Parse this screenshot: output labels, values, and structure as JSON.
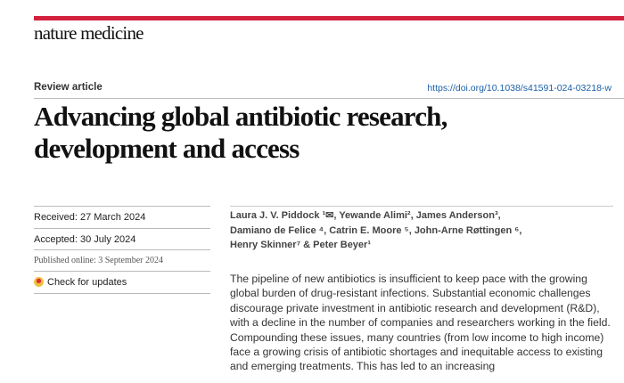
{
  "journal": "nature medicine",
  "colors": {
    "accent": "#d4203f",
    "link": "#1a5fa8"
  },
  "article_type": "Review article",
  "doi": "https://doi.org/10.1038/s41591-024-03218-w",
  "title_lines": [
    "Advancing global antibiotic research,",
    "development and access"
  ],
  "dates": {
    "received": "Received: 27 March 2024",
    "accepted": "Accepted: 30 July 2024",
    "published": "Published online: 3 September 2024"
  },
  "check_updates": "Check for updates",
  "authors_lines": [
    "Laura J. V. Piddock ¹✉, Yewande Alimi², James Anderson³,",
    "Damiano de Felice ⁴, Catrin E. Moore ⁵, John-Arne Røttingen ⁶,",
    "Henry Skinner⁷ & Peter Beyer¹"
  ],
  "abstract": "The pipeline of new antibiotics is insufficient to keep pace with the growing global burden of drug-resistant infections. Substantial economic challenges discourage private investment in antibiotic research and development (R&D), with a decline in the number of companies and researchers working in the field. Compounding these issues, many countries (from low income to high income) face a growing crisis of antibiotic shortages and inequitable access to existing and emerging treatments. This has led to an increasing"
}
